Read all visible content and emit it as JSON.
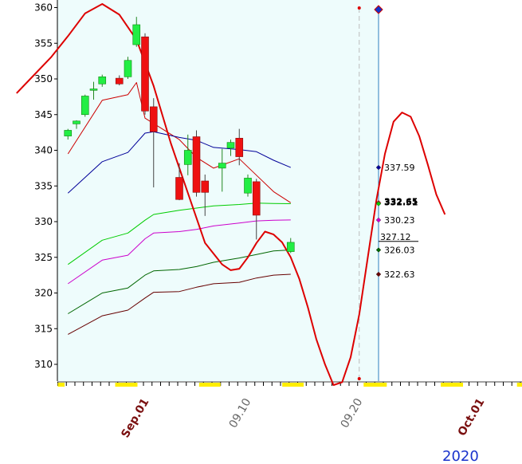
{
  "chart_data": {
    "type": "candlestick",
    "ylim": [
      307,
      361
    ],
    "y_ticks": [
      310,
      315,
      320,
      325,
      330,
      335,
      340,
      345,
      350,
      355,
      360
    ],
    "x_date_labels": [
      {
        "label": "Sep.01",
        "color": "#7a1010",
        "day": 7
      },
      {
        "label": "09.10",
        "color": "#666666",
        "day": 16
      },
      {
        "label": "09.20",
        "color": "#666666",
        "day": 26
      },
      {
        "label": "Oct.01",
        "color": "#7a1010",
        "day": 37
      }
    ],
    "year_label": "2020",
    "last_data_day": 27,
    "projection_day": 35,
    "candles": [
      {
        "day": 1,
        "open": 342.0,
        "high": 343.0,
        "low": 341.5,
        "close": 342.8
      },
      {
        "day": 2,
        "open": 343.7,
        "high": 344.2,
        "low": 343.0,
        "close": 344.1
      },
      {
        "day": 3,
        "open": 345.0,
        "high": 347.8,
        "low": 344.7,
        "close": 347.6
      },
      {
        "day": 4,
        "open": 348.4,
        "high": 349.6,
        "low": 347.1,
        "close": 348.6
      },
      {
        "day": 5,
        "open": 349.3,
        "high": 350.6,
        "low": 348.9,
        "close": 350.3
      },
      {
        "day": 7,
        "open": 350.1,
        "high": 350.5,
        "low": 349.1,
        "close": 349.3
      },
      {
        "day": 8,
        "open": 350.3,
        "high": 353.1,
        "low": 350.0,
        "close": 352.6
      },
      {
        "day": 9,
        "open": 354.8,
        "high": 358.7,
        "low": 354.5,
        "close": 357.6
      },
      {
        "day": 10,
        "open": 355.9,
        "high": 356.4,
        "low": 345.0,
        "close": 345.5
      },
      {
        "day": 11,
        "open": 346.1,
        "high": 347.3,
        "low": 334.8,
        "close": 342.6
      },
      {
        "day": 14,
        "open": 336.2,
        "high": 338.2,
        "low": 333.0,
        "close": 333.1
      },
      {
        "day": 15,
        "open": 338.0,
        "high": 342.2,
        "low": 336.5,
        "close": 340.0
      },
      {
        "day": 16,
        "open": 341.9,
        "high": 342.8,
        "low": 333.5,
        "close": 334.1
      },
      {
        "day": 17,
        "open": 335.7,
        "high": 336.6,
        "low": 330.8,
        "close": 334.1
      },
      {
        "day": 19,
        "open": 337.5,
        "high": 340.2,
        "low": 334.2,
        "close": 338.2
      },
      {
        "day": 20,
        "open": 340.3,
        "high": 341.5,
        "low": 339.2,
        "close": 341.1
      },
      {
        "day": 21,
        "open": 341.7,
        "high": 343.0,
        "low": 337.9,
        "close": 339.1
      },
      {
        "day": 22,
        "open": 334.0,
        "high": 336.6,
        "low": 333.5,
        "close": 336.1
      },
      {
        "day": 23,
        "open": 335.6,
        "high": 336.0,
        "low": 327.5,
        "close": 330.9
      },
      {
        "day": 27,
        "open": 325.8,
        "high": 327.7,
        "low": 325.6,
        "close": 327.1
      }
    ],
    "series": [
      {
        "color": "#cc0000",
        "width": 1,
        "label": "332.65",
        "points": [
          [
            1,
            339.5
          ],
          [
            5,
            347
          ],
          [
            8,
            347.8
          ],
          [
            9,
            349.5
          ],
          [
            10,
            344.5
          ],
          [
            14,
            341.5
          ],
          [
            16,
            339
          ],
          [
            18,
            337.5
          ],
          [
            21,
            338.8
          ],
          [
            23,
            336.5
          ],
          [
            25,
            334.2
          ],
          [
            27,
            332.65
          ]
        ]
      },
      {
        "color": "#000099",
        "width": 1,
        "label": "337.59",
        "points": [
          [
            1,
            334
          ],
          [
            5,
            338.4
          ],
          [
            8,
            339.7
          ],
          [
            10,
            342.4
          ],
          [
            11,
            342.6
          ],
          [
            14,
            341.8
          ],
          [
            16,
            341.4
          ],
          [
            18,
            340.4
          ],
          [
            21,
            340.1
          ],
          [
            23,
            339.8
          ],
          [
            25,
            338.6
          ],
          [
            27,
            337.59
          ]
        ]
      },
      {
        "color": "#00cc00",
        "width": 1,
        "label": "332.51",
        "points": [
          [
            1,
            324
          ],
          [
            5,
            327.4
          ],
          [
            8,
            328.4
          ],
          [
            10,
            330.2
          ],
          [
            11,
            331
          ],
          [
            14,
            331.6
          ],
          [
            16,
            331.9
          ],
          [
            18,
            332.2
          ],
          [
            21,
            332.4
          ],
          [
            23,
            332.6
          ],
          [
            25,
            332.55
          ],
          [
            27,
            332.51
          ]
        ]
      },
      {
        "color": "#cc00cc",
        "width": 1,
        "label": "330.23",
        "points": [
          [
            1,
            321.3
          ],
          [
            5,
            324.6
          ],
          [
            8,
            325.3
          ],
          [
            10,
            327.6
          ],
          [
            11,
            328.4
          ],
          [
            14,
            328.6
          ],
          [
            16,
            328.9
          ],
          [
            18,
            329.4
          ],
          [
            21,
            329.8
          ],
          [
            23,
            330.1
          ],
          [
            25,
            330.2
          ],
          [
            27,
            330.23
          ]
        ]
      },
      {
        "color": "#006600",
        "width": 1,
        "label": "326.03",
        "points": [
          [
            1,
            317.1
          ],
          [
            5,
            320
          ],
          [
            8,
            320.7
          ],
          [
            10,
            322.5
          ],
          [
            11,
            323.1
          ],
          [
            14,
            323.3
          ],
          [
            16,
            323.7
          ],
          [
            18,
            324.3
          ],
          [
            21,
            324.9
          ],
          [
            23,
            325.4
          ],
          [
            25,
            325.9
          ],
          [
            27,
            326.03
          ]
        ]
      },
      {
        "color": "#660000",
        "width": 1,
        "label": "322.63",
        "points": [
          [
            1,
            314.2
          ],
          [
            5,
            316.8
          ],
          [
            8,
            317.6
          ],
          [
            10,
            319.3
          ],
          [
            11,
            320.1
          ],
          [
            14,
            320.2
          ],
          [
            16,
            320.8
          ],
          [
            18,
            321.3
          ],
          [
            21,
            321.5
          ],
          [
            23,
            322.1
          ],
          [
            25,
            322.5
          ],
          [
            27,
            322.63
          ]
        ]
      },
      {
        "color": "#dd0000",
        "width": 2,
        "label": "",
        "points": [
          [
            -5,
            348
          ],
          [
            -3,
            350.5
          ],
          [
            -1,
            353
          ],
          [
            1,
            356
          ],
          [
            3,
            359.2
          ],
          [
            5,
            360.5
          ],
          [
            7,
            359
          ],
          [
            9,
            355.5
          ],
          [
            11,
            349
          ],
          [
            13,
            341
          ],
          [
            15,
            334
          ],
          [
            17,
            327
          ],
          [
            19,
            324
          ],
          [
            20,
            323.2
          ],
          [
            21,
            323.4
          ],
          [
            22,
            325
          ],
          [
            23,
            327
          ],
          [
            24,
            328.6
          ],
          [
            25,
            328.2
          ],
          [
            26,
            327.1
          ],
          [
            27,
            325
          ],
          [
            28,
            322
          ],
          [
            29,
            318
          ],
          [
            30,
            313.5
          ],
          [
            31,
            310
          ],
          [
            32,
            307.1
          ],
          [
            33,
            307.5
          ],
          [
            34,
            311
          ],
          [
            35,
            317
          ],
          [
            36,
            325
          ],
          [
            37,
            333
          ],
          [
            38,
            339.5
          ],
          [
            39,
            344
          ],
          [
            40,
            345.3
          ],
          [
            41,
            344.7
          ],
          [
            42,
            342
          ],
          [
            43,
            338
          ],
          [
            44,
            333.8
          ],
          [
            45,
            331
          ]
        ]
      }
    ],
    "price_marker": {
      "label": "327.12",
      "value": 327.12
    },
    "legend_labels": [
      "337.59",
      "332.65",
      "332.51",
      "330.23",
      "327.12",
      "326.03",
      "322.63"
    ]
  }
}
